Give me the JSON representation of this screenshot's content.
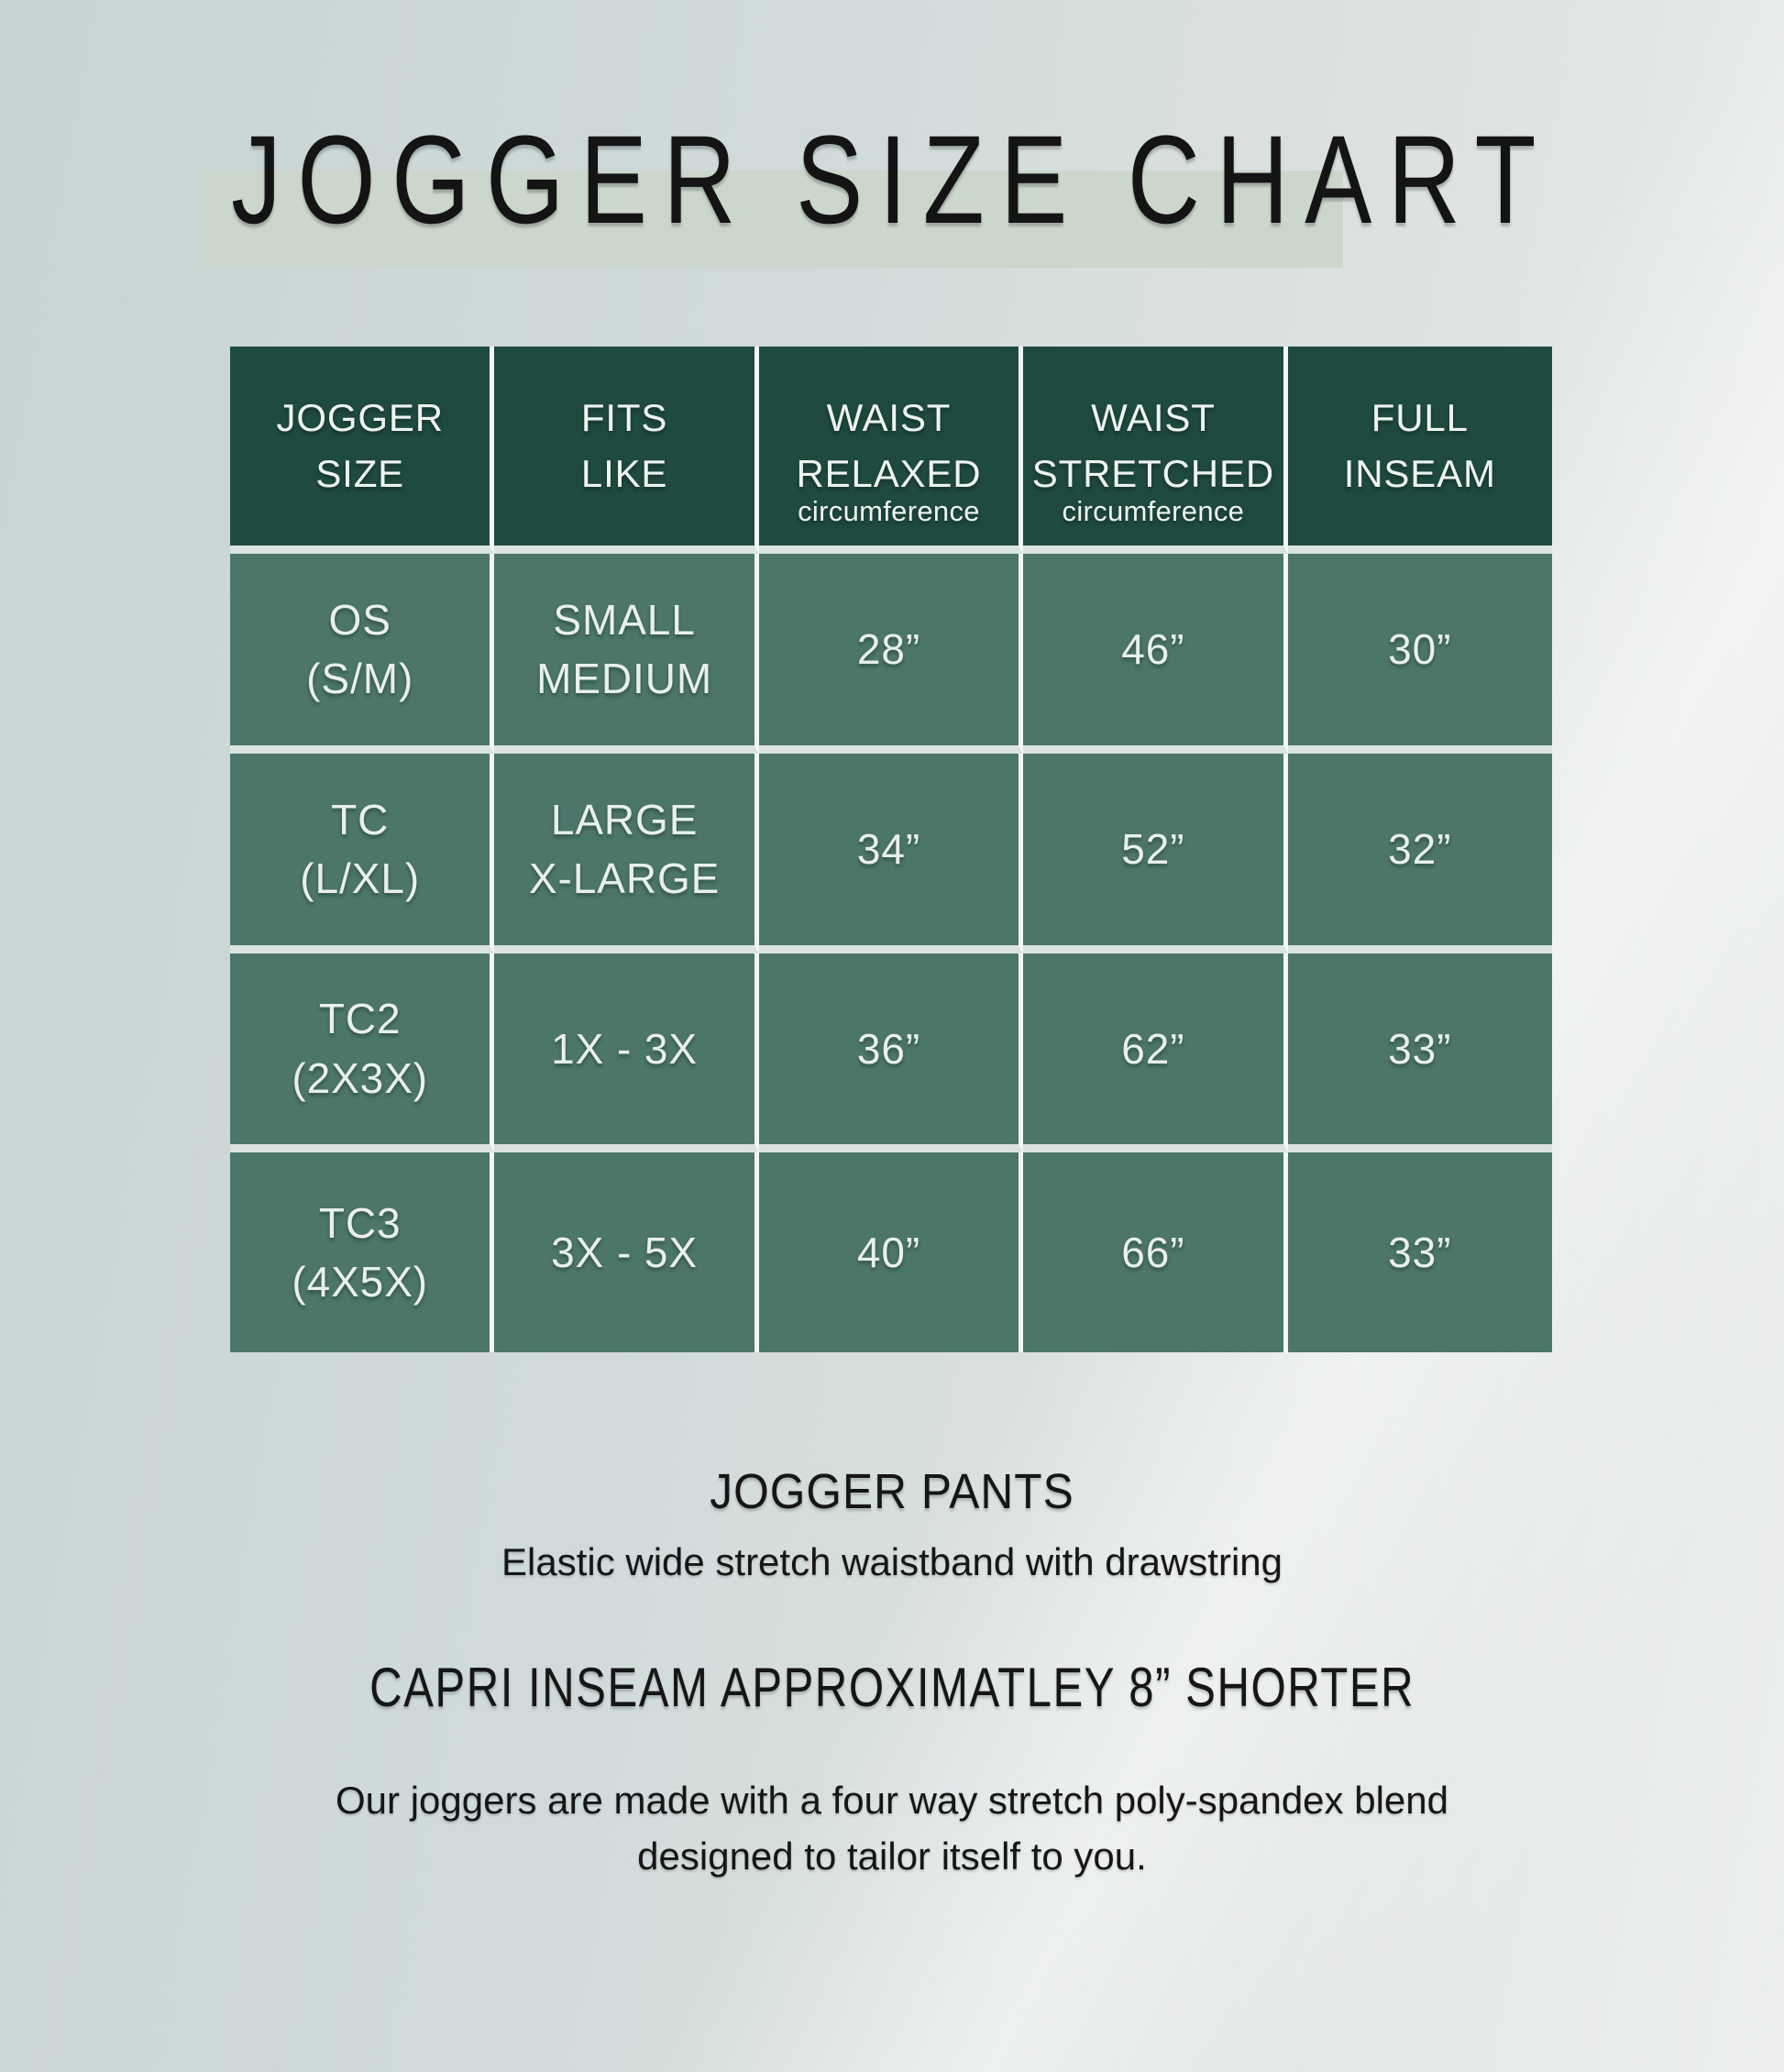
{
  "title": "JOGGER SIZE CHART",
  "colors": {
    "header_bg": "#1f4a40",
    "cell_bg": "#4d766a",
    "vertical_divider": "#f3f6f4",
    "horizontal_divider": "#dbe3e1",
    "title_highlight": "#cbd7ca",
    "background_left": "#c7d3d4",
    "background_right": "#ecefee",
    "text_dark": "#141414",
    "text_light": "#eff4f1"
  },
  "table": {
    "headers": [
      {
        "lines": [
          "JOGGER",
          "SIZE"
        ],
        "sublabel": ""
      },
      {
        "lines": [
          "FITS",
          "LIKE"
        ],
        "sublabel": ""
      },
      {
        "lines": [
          "WAIST",
          "RELAXED"
        ],
        "sublabel": "circumference"
      },
      {
        "lines": [
          "WAIST",
          "STRETCHED"
        ],
        "sublabel": "circumference"
      },
      {
        "lines": [
          "FULL",
          "INSEAM"
        ],
        "sublabel": ""
      }
    ],
    "rows": [
      {
        "jogger_size": [
          "OS",
          "(S/M)"
        ],
        "fits_like": [
          "SMALL",
          "MEDIUM"
        ],
        "waist_relaxed": "28”",
        "waist_stretched": "46”",
        "full_inseam": "30”"
      },
      {
        "jogger_size": [
          "TC",
          "(L/XL)"
        ],
        "fits_like": [
          "LARGE",
          "X-LARGE"
        ],
        "waist_relaxed": "34”",
        "waist_stretched": "52”",
        "full_inseam": "32”"
      },
      {
        "jogger_size": [
          "TC2",
          "(2X3X)"
        ],
        "fits_like": [
          "1X - 3X"
        ],
        "waist_relaxed": "36”",
        "waist_stretched": "62”",
        "full_inseam": "33”"
      },
      {
        "jogger_size": [
          "TC3",
          "(4X5X)"
        ],
        "fits_like": [
          "3X - 5X"
        ],
        "waist_relaxed": "40”",
        "waist_stretched": "66”",
        "full_inseam": "33”"
      }
    ]
  },
  "chart_data": {
    "type": "table",
    "title": "JOGGER SIZE CHART",
    "columns": [
      "JOGGER SIZE",
      "FITS LIKE",
      "WAIST RELAXED circumference",
      "WAIST STRETCHED circumference",
      "FULL INSEAM"
    ],
    "rows": [
      [
        "OS (S/M)",
        "SMALL MEDIUM",
        "28”",
        "46”",
        "30”"
      ],
      [
        "TC (L/XL)",
        "LARGE X-LARGE",
        "34”",
        "52”",
        "32”"
      ],
      [
        "TC2 (2X3X)",
        "1X - 3X",
        "36”",
        "62”",
        "33”"
      ],
      [
        "TC3 (4X5X)",
        "3X - 5X",
        "40”",
        "66”",
        "33”"
      ]
    ]
  },
  "footer": {
    "section1_title": "JOGGER PANTS",
    "section1_subtitle": "Elastic wide stretch waistband with drawstring",
    "section2_title": "CAPRI INSEAM APPROXIMATLEY 8” SHORTER",
    "section3_line1": "Our joggers are made with a four way stretch poly-spandex blend",
    "section3_line2": "designed to tailor itself to you."
  }
}
